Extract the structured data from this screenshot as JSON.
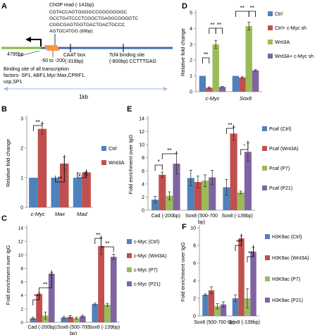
{
  "colors": {
    "blue": "#4f81bd",
    "red": "#c0504d",
    "green": "#9bbb59",
    "purple": "#8064a2",
    "line_green": "#7fbf3f",
    "line_blue": "#3c6fb3",
    "orange": "#f79646",
    "arrow_blue": "#9fc0e0"
  },
  "panel_a": {
    "letter": "A",
    "chop_read": [
      "ChOP read (-141bp)",
      "CGTACCAGTGGGGCCGGGGGGGC",
      "GCCTGATCCCTCGGCTGAGGCGGGGTC",
      "CGGCGAGTGGTGACTGACTGCCC",
      "AGTGCATGG (89bp)"
    ],
    "label_4795": "4795bp",
    "caat": "CAAT box",
    "caat_pos": "(-316bp)",
    "tcf_line1": "Tcf4 binding site",
    "tcf_line2": "(-800bp) CCTTTGAG",
    "range": "-50 to -200",
    "binding_sites": [
      "Binding site of all transcription",
      "factors- SP1, ABF1,Myc:Max,CPRF1,",
      "usp,SP1"
    ],
    "scale": "1kb"
  },
  "chart_data": [
    {
      "panel": "B",
      "type": "bar",
      "ylabel": "Relative fold change",
      "ylim": [
        0,
        3
      ],
      "ticks": [
        0,
        1,
        2,
        3
      ],
      "categories": [
        "c-Myc",
        "Max",
        "Mad"
      ],
      "series": [
        {
          "name": "Ctrl",
          "values": [
            1.0,
            1.0,
            1.0
          ],
          "errors": [
            0,
            0,
            0
          ]
        },
        {
          "name": "Wnt3A",
          "values": [
            2.65,
            1.48,
            1.18
          ],
          "errors": [
            0.18,
            0.22,
            0.03
          ]
        }
      ],
      "significance": [
        "**",
        "**",
        "N. S"
      ]
    },
    {
      "panel": "C",
      "type": "bar",
      "ylabel": "Fold enrichment over IgG",
      "ylim": [
        0,
        14
      ],
      "ticks": [
        0,
        2,
        4,
        6,
        8,
        10,
        12,
        14
      ],
      "categories": [
        "Cad (-200bp)",
        "Sox8 (500-700 bp)",
        "Sox8 (-139bp)"
      ],
      "series": [
        {
          "name": "c-Myc (Ctrl)",
          "values": [
            0.6,
            0.7,
            2.7
          ],
          "errors": [
            0.15,
            0.15,
            0.15
          ]
        },
        {
          "name": "c-Myc (Wnt3A)",
          "values": [
            4.2,
            0.8,
            11.3
          ],
          "errors": [
            0.15,
            0.2,
            1.2
          ]
        },
        {
          "name": "c-Myc (P7)",
          "values": [
            1.0,
            0.6,
            2.6
          ],
          "errors": [
            0.5,
            0.15,
            0.2
          ]
        },
        {
          "name": "c-Myc (P21)",
          "values": [
            7.2,
            0.9,
            9.7
          ],
          "errors": [
            0.2,
            0.15,
            0.4
          ]
        }
      ],
      "significance": [
        "**",
        "**",
        "**",
        "**"
      ]
    },
    {
      "panel": "D",
      "type": "bar",
      "ylabel": "Relative fold change",
      "ylim": [
        0,
        5
      ],
      "ticks": [
        0,
        1,
        2,
        3,
        4,
        5
      ],
      "categories": [
        "c-Myc",
        "Sox8"
      ],
      "series": [
        {
          "name": "Ctrl",
          "values": [
            1.0,
            1.0
          ],
          "errors": [
            0,
            0
          ]
        },
        {
          "name": "Ctrl+ c-Myc sh",
          "values": [
            0.25,
            0.9
          ],
          "errors": [
            0.05,
            0.05
          ]
        },
        {
          "name": "Wnt3A",
          "values": [
            3.0,
            4.15
          ],
          "errors": [
            0.25,
            0.25
          ]
        },
        {
          "name": "Wnt3A+ c-Myc sh",
          "values": [
            0.3,
            1.35
          ],
          "errors": [
            0.03,
            0.05
          ]
        }
      ],
      "significance": [
        "**",
        "**",
        "**",
        "**",
        "**"
      ]
    },
    {
      "panel": "E",
      "type": "bar",
      "ylabel": "Fold enrichment over IgG",
      "ylim": [
        0,
        14
      ],
      "ticks": [
        0,
        2,
        4,
        6,
        8,
        10,
        12,
        14
      ],
      "categories": [
        "Cad (-200bp)",
        "Sox8 (500-700 bp)",
        "Sox8 (-139bp)"
      ],
      "series": [
        {
          "name": "Pcaf (Ctrl)",
          "values": [
            1.6,
            4.9,
            3.5
          ],
          "errors": [
            0.5,
            1.2,
            1.2
          ]
        },
        {
          "name": "Pcaf (Wnt3A)",
          "values": [
            5.4,
            4.3,
            11.7
          ],
          "errors": [
            0.4,
            0.9,
            1.0
          ]
        },
        {
          "name": "Pcaf (P7)",
          "values": [
            2.2,
            4.5,
            2.7
          ],
          "errors": [
            0.6,
            0.9,
            0.2
          ]
        },
        {
          "name": "Pcaf (P21)",
          "values": [
            7.1,
            5.0,
            8.9
          ],
          "errors": [
            1.6,
            1.1,
            1.4
          ]
        }
      ],
      "significance": [
        "*",
        "**",
        "**",
        "*"
      ]
    },
    {
      "panel": "F",
      "type": "bar",
      "ylabel": "Fold enrichment over IgG",
      "ylim": [
        0,
        10
      ],
      "ticks": [
        0,
        2,
        4,
        6,
        8,
        10
      ],
      "categories": [
        "Sox8 (500-700 bp)",
        "Sox8 (-139bp)"
      ],
      "series": [
        {
          "name": "H3K9ac (Ctrl)",
          "values": [
            2.4,
            2.0
          ],
          "errors": [
            0.1,
            0.4
          ]
        },
        {
          "name": "H3K9ac (Wnt3A)",
          "values": [
            2.9,
            8.8
          ],
          "errors": [
            0.4,
            0.3
          ]
        },
        {
          "name": "H3K9ac (P7)",
          "values": [
            1.1,
            2.0
          ],
          "errors": [
            0.3,
            1.1
          ]
        },
        {
          "name": "H3K9ac (P21)",
          "values": [
            1.3,
            7.3
          ],
          "errors": [
            0.3,
            0.5
          ]
        }
      ],
      "significance": [
        "**",
        "**"
      ]
    }
  ]
}
